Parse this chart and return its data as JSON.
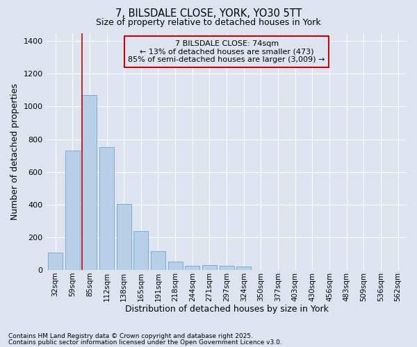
{
  "title_line1": "7, BILSDALE CLOSE, YORK, YO30 5TT",
  "title_line2": "Size of property relative to detached houses in York",
  "xlabel": "Distribution of detached houses by size in York",
  "ylabel": "Number of detached properties",
  "categories": [
    "32sqm",
    "59sqm",
    "85sqm",
    "112sqm",
    "138sqm",
    "165sqm",
    "191sqm",
    "218sqm",
    "244sqm",
    "271sqm",
    "297sqm",
    "324sqm",
    "350sqm",
    "377sqm",
    "403sqm",
    "430sqm",
    "456sqm",
    "483sqm",
    "509sqm",
    "536sqm",
    "562sqm"
  ],
  "values": [
    105,
    730,
    1070,
    750,
    405,
    240,
    115,
    50,
    25,
    30,
    25,
    20,
    0,
    0,
    0,
    0,
    0,
    0,
    0,
    0,
    0
  ],
  "bar_color": "#b8cfe8",
  "bar_edge_color": "#7aadd4",
  "background_color": "#dde4f0",
  "grid_color": "#ffffff",
  "vline_color": "#cc0000",
  "vline_x_index": 2,
  "annotation_text": "7 BILSDALE CLOSE: 74sqm\n← 13% of detached houses are smaller (473)\n85% of semi-detached houses are larger (3,009) →",
  "annotation_box_edgecolor": "#cc0000",
  "ylim": [
    0,
    1450
  ],
  "yticks": [
    0,
    200,
    400,
    600,
    800,
    1000,
    1200,
    1400
  ],
  "footnote1": "Contains HM Land Registry data © Crown copyright and database right 2025.",
  "footnote2": "Contains public sector information licensed under the Open Government Licence v3.0."
}
